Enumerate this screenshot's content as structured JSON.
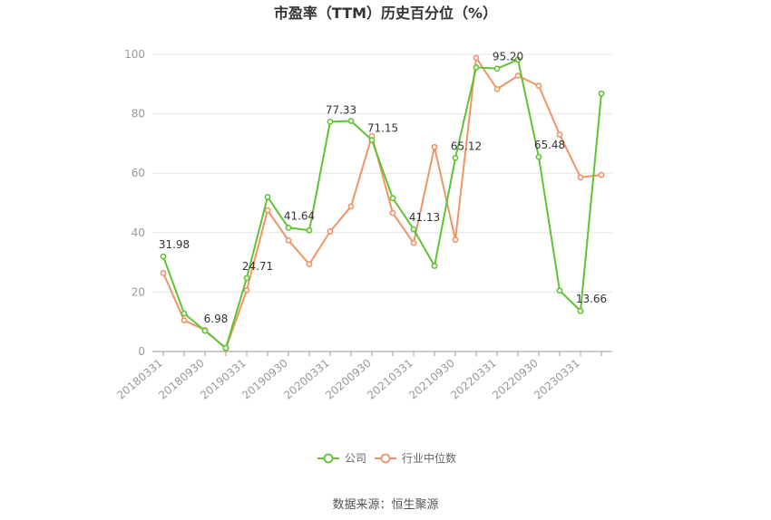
{
  "chart_data": {
    "type": "line",
    "title": "市盈率（TTM）历史百分位（%）",
    "ylim": [
      0,
      100
    ],
    "yticks": [
      0,
      20,
      40,
      60,
      80,
      100
    ],
    "grid": true,
    "legend_position": "bottom",
    "x": [
      "20180331",
      "20180630",
      "20180930",
      "20181231",
      "20190331",
      "20190630",
      "20190930",
      "20191231",
      "20200331",
      "20200630",
      "20200930",
      "20201231",
      "20210331",
      "20210630",
      "20210930",
      "20211231",
      "20220331",
      "20220630",
      "20220930",
      "20221231",
      "20230331",
      "20230630"
    ],
    "x_tick_labels": [
      "20180331",
      "20180930",
      "20190331",
      "20190930",
      "20200331",
      "20200930",
      "20210331",
      "20210930",
      "20220331",
      "20220930",
      "20230331"
    ],
    "series": [
      {
        "name": "公司",
        "color": "#5fc333",
        "values": [
          31.98,
          12.8,
          6.98,
          1.2,
          24.71,
          52.0,
          41.64,
          40.8,
          77.33,
          77.6,
          71.15,
          51.6,
          41.13,
          28.8,
          65.12,
          95.6,
          95.2,
          98.2,
          65.48,
          20.5,
          13.66,
          86.8
        ]
      },
      {
        "name": "行业中位数",
        "color": "#f09466",
        "values": [
          26.4,
          10.5,
          7.2,
          1.0,
          20.6,
          47.5,
          37.4,
          29.4,
          40.4,
          48.8,
          72.5,
          46.6,
          36.5,
          68.8,
          37.6,
          98.8,
          88.3,
          92.8,
          89.4,
          73.0,
          58.6,
          59.4
        ]
      }
    ],
    "data_labels": [
      {
        "index": 0,
        "text": "31.98"
      },
      {
        "index": 2,
        "text": "6.98"
      },
      {
        "index": 4,
        "text": "24.71"
      },
      {
        "index": 6,
        "text": "41.64"
      },
      {
        "index": 8,
        "text": "77.33"
      },
      {
        "index": 10,
        "text": "71.15"
      },
      {
        "index": 12,
        "text": "41.13"
      },
      {
        "index": 14,
        "text": "65.12"
      },
      {
        "index": 16,
        "text": "95.20"
      },
      {
        "index": 18,
        "text": "65.48"
      },
      {
        "index": 20,
        "text": "13.66"
      }
    ]
  },
  "footer": {
    "source": "数据来源：恒生聚源"
  }
}
